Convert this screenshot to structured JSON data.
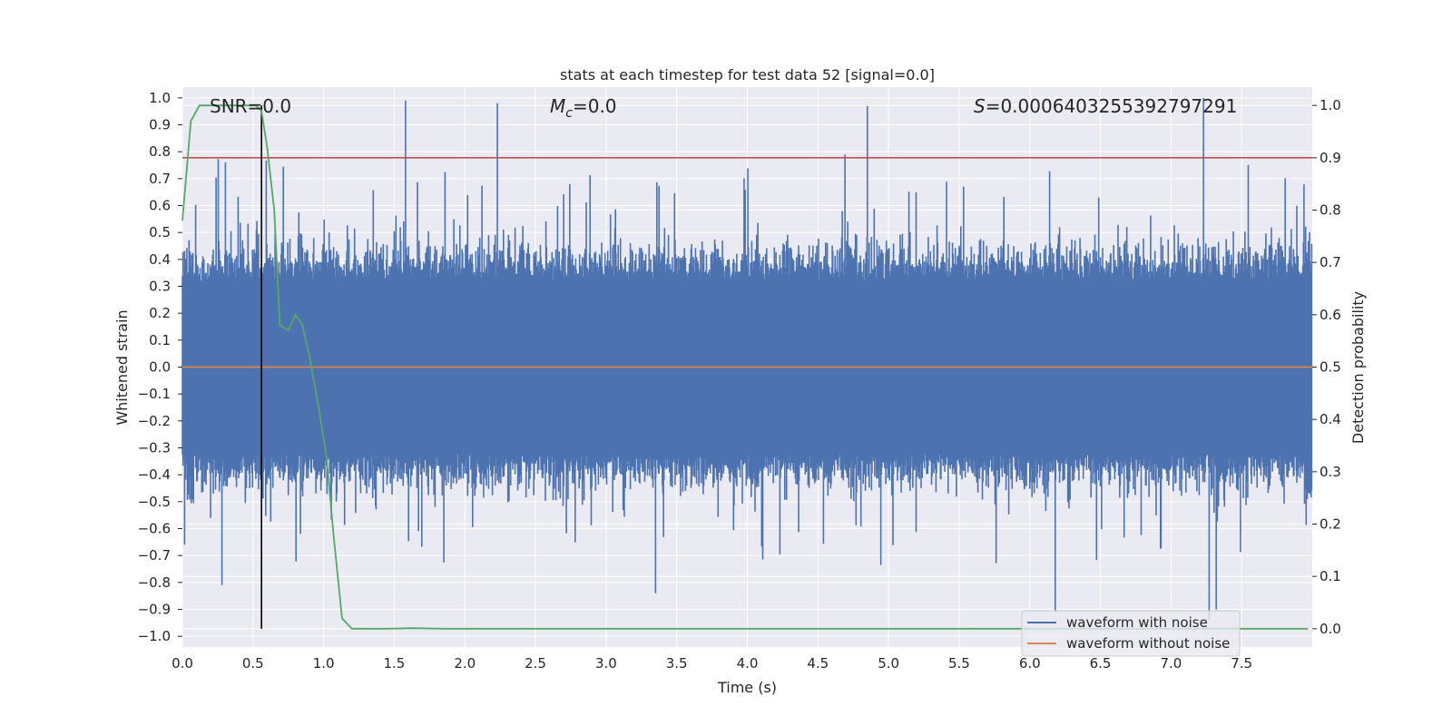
{
  "chart_data": {
    "type": "line",
    "title": "stats at each timestep for test data 52 [signal=0.0]",
    "xlabel": "Time (s)",
    "ylabel": "Whitened strain",
    "ylabel_right": "Detection probability",
    "xlim": [
      0.0,
      8.0
    ],
    "ylim": [
      -1.04,
      1.04
    ],
    "ylim_right": [
      -0.035,
      1.035
    ],
    "x_ticks": [
      "0.0",
      "0.5",
      "1.0",
      "1.5",
      "2.0",
      "2.5",
      "3.0",
      "3.5",
      "4.0",
      "4.5",
      "5.0",
      "5.5",
      "6.0",
      "6.5",
      "7.0",
      "7.5"
    ],
    "y_ticks": [
      "1.0",
      "0.9",
      "0.8",
      "0.7",
      "0.6",
      "0.5",
      "0.4",
      "0.3",
      "0.2",
      "0.1",
      "0.0",
      "-0.1",
      "-0.2",
      "-0.3",
      "-0.4",
      "-0.5",
      "-0.6",
      "-0.7",
      "-0.8",
      "-0.9",
      "-1.0"
    ],
    "y_ticks_right": [
      "1.0",
      "0.9",
      "0.8",
      "0.7",
      "0.6",
      "0.5",
      "0.4",
      "0.3",
      "0.2",
      "0.1",
      "0.0"
    ],
    "grid": true,
    "legend_position": "bottom-right",
    "annotations": {
      "snr": "SNR=0.0",
      "mc_symbol": "M",
      "mc_sub": "c",
      "mc_value": "=0.0",
      "s_symbol": "S",
      "s_value": "=0.0006403255392797291"
    },
    "threshold": {
      "axis": "right",
      "value": 0.9,
      "color": "#c44e52"
    },
    "marker_line": {
      "x": 0.56,
      "color": "#000000"
    },
    "series": [
      {
        "name": "waveform with noise",
        "axis": "left",
        "color": "#4c72b0",
        "kind": "noise",
        "sample_rate": 2048,
        "envelope_typical": 0.35,
        "notable_peaks": [
          {
            "x": 1.58,
            "y": 0.99
          },
          {
            "x": 2.23,
            "y": 0.98
          },
          {
            "x": 4.85,
            "y": 0.97
          },
          {
            "x": 7.23,
            "y": 1.0
          },
          {
            "x": 7.27,
            "y": -0.94
          },
          {
            "x": 7.32,
            "y": -0.9
          },
          {
            "x": 6.18,
            "y": -0.91
          },
          {
            "x": 0.28,
            "y": -0.81
          },
          {
            "x": 3.35,
            "y": -0.84
          }
        ]
      },
      {
        "name": "waveform without noise",
        "axis": "left",
        "color": "#dd8452",
        "x": [
          0.0,
          8.0
        ],
        "y": [
          0.0,
          0.0
        ]
      },
      {
        "name": "detection probability",
        "axis": "right",
        "color": "#55a868",
        "x": [
          0.0,
          0.06,
          0.12,
          0.2,
          0.3,
          0.4,
          0.48,
          0.52,
          0.56,
          0.6,
          0.65,
          0.69,
          0.75,
          0.8,
          0.85,
          0.9,
          0.96,
          1.02,
          1.07,
          1.13,
          1.2,
          1.3,
          1.45,
          1.63,
          1.85,
          2.5,
          4.0,
          5.5,
          7.0,
          7.6,
          7.97
        ],
        "y": [
          0.78,
          0.97,
          1.0,
          1.0,
          1.0,
          1.0,
          1.0,
          1.0,
          0.99,
          0.92,
          0.8,
          0.58,
          0.57,
          0.6,
          0.58,
          0.52,
          0.43,
          0.33,
          0.18,
          0.02,
          0.0,
          0.0,
          0.0,
          0.001,
          0.0,
          0.0,
          0.0,
          0.0,
          0.0,
          0.0,
          0.0
        ]
      }
    ],
    "legend": [
      "waveform with noise",
      "waveform without noise"
    ]
  }
}
